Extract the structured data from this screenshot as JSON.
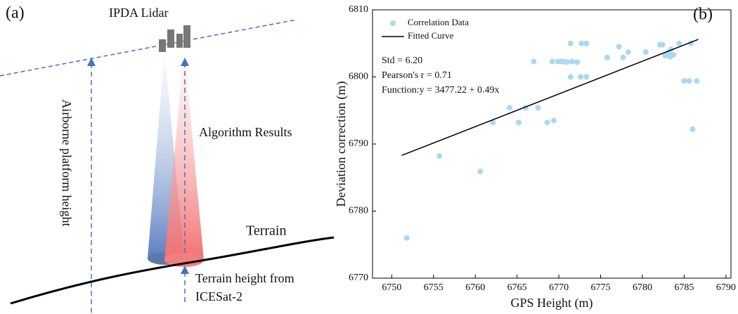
{
  "diagram": {
    "label": "(a)",
    "lidar": "IPDA Lidar",
    "platform_height": "Airborne platform height",
    "algorithm": "Algorithm Results",
    "terrain": "Terrain",
    "terrain_height": [
      "Terrain height from",
      "ICESat-2"
    ]
  },
  "chart_data": {
    "type": "scatter",
    "panel_label": "(b)",
    "x_label": "GPS Height (m)",
    "y_label": "Deviation correction (m)",
    "annotations": [
      "Std = 6.20",
      "Pearson's r = 0.71",
      "Function:y = 3477.22 + 0.49x"
    ],
    "xlim": [
      6747.7,
      6790.6
    ],
    "ylim": [
      6770,
      6810
    ],
    "xticks": [
      6750,
      6755,
      6760,
      6765,
      6770,
      6775,
      6780,
      6785,
      6790
    ],
    "yticks": [
      6770,
      6780,
      6790,
      6800,
      6810
    ],
    "series": [
      {
        "name": "Correlation Data",
        "type": "scatter",
        "color": "#a9d9f4",
        "x": [
          6751.8,
          6755.7,
          6760.6,
          6762.1,
          6764.1,
          6765.2,
          6766.0,
          6767.5,
          6768.6,
          6769.4,
          6767.0,
          6769.2,
          6769.9,
          6770.3,
          6770.6,
          6771.0,
          6771.6,
          6772.2,
          6771.4,
          6771.4,
          6772.7,
          6773.3,
          6772.6,
          6773.3,
          6775.8,
          6777.2,
          6777.7,
          6778.3,
          6780.4,
          6782.1,
          6782.4,
          6782.7,
          6783.1,
          6783.4,
          6783.7,
          6783.3,
          6784.4,
          6785.8,
          6785.0,
          6785.6,
          6786.5,
          6786.0
        ],
        "values": [
          6776.0,
          6788.2,
          6785.9,
          6793.2,
          6795.4,
          6793.2,
          6795.4,
          6795.4,
          6793.2,
          6793.5,
          6802.3,
          6802.3,
          6802.3,
          6802.3,
          6802.3,
          6802.2,
          6802.3,
          6802.2,
          6805.0,
          6800.0,
          6805.0,
          6805.0,
          6800.0,
          6800.0,
          6802.9,
          6804.5,
          6802.9,
          6803.7,
          6803.7,
          6804.8,
          6804.8,
          6803.2,
          6803.6,
          6804.1,
          6803.3,
          6803.0,
          6805.0,
          6805.0,
          6799.4,
          6799.4,
          6799.4,
          6792.2
        ]
      },
      {
        "name": "Fitted Curve",
        "type": "line",
        "color": "#000000",
        "x": [
          6751.2,
          6786.7
        ],
        "values": [
          6788.3,
          6805.6
        ]
      }
    ]
  }
}
